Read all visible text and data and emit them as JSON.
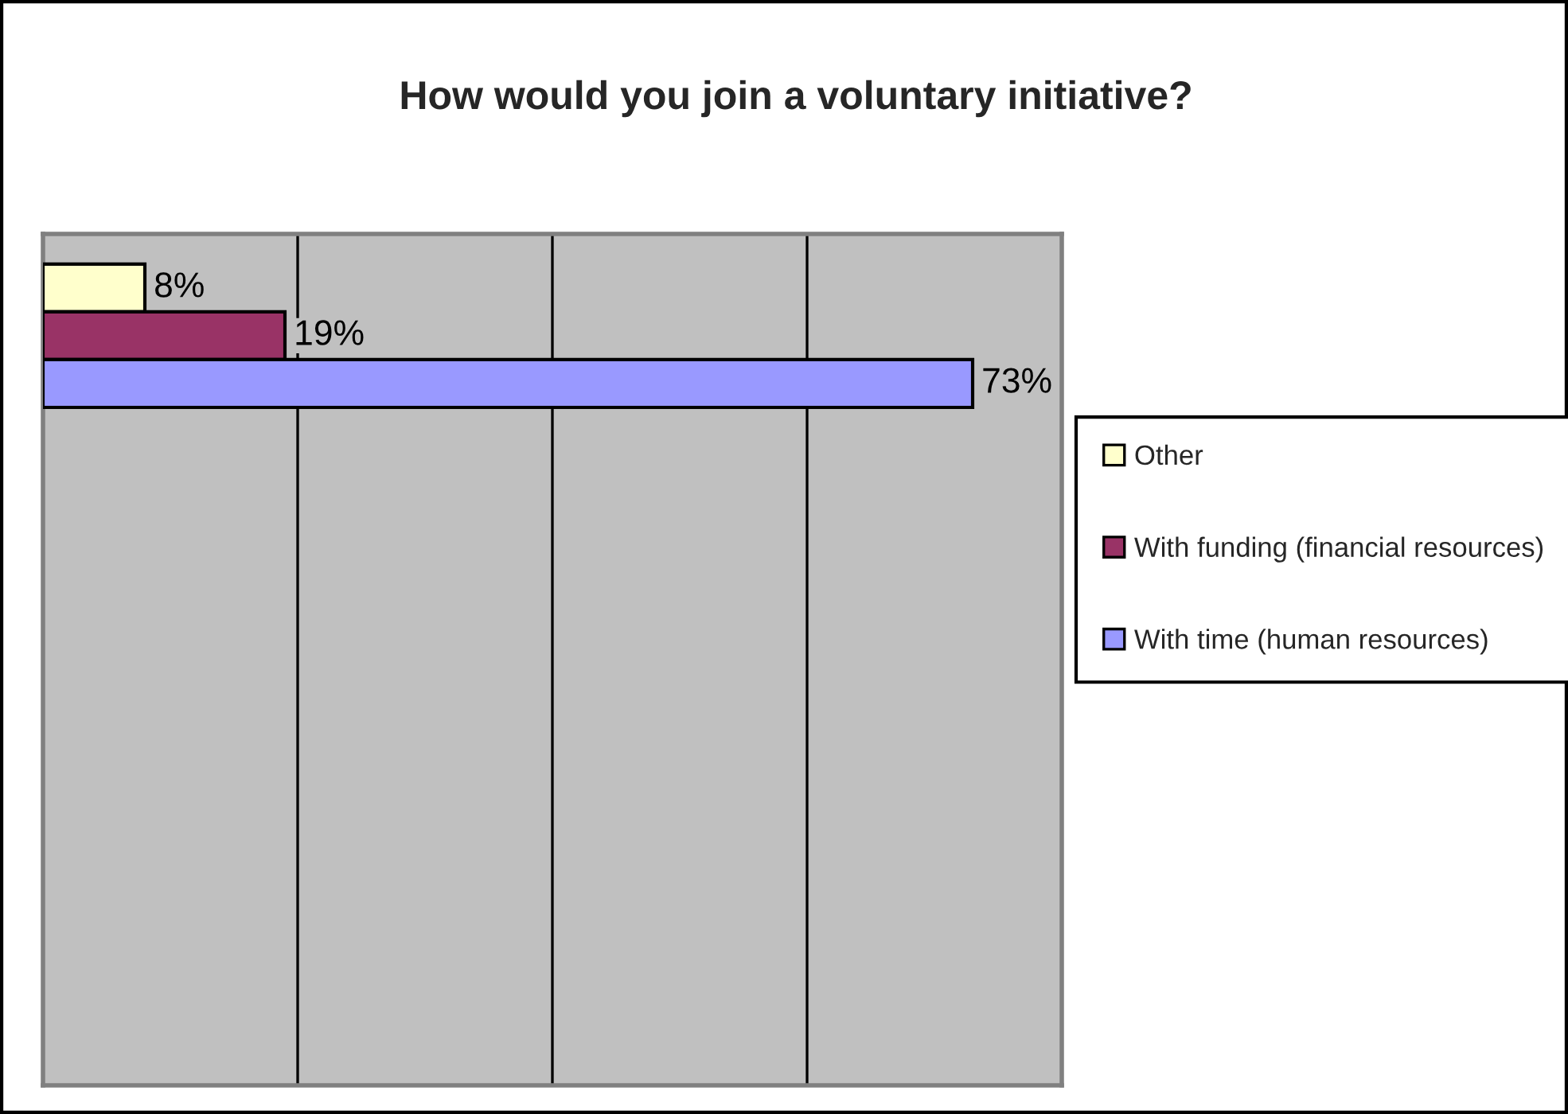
{
  "chart_data": {
    "type": "bar",
    "orientation": "horizontal",
    "title": "How would you join a voluntary initiative?",
    "categories": [
      null
    ],
    "series": [
      {
        "name": "Other",
        "color": "#ffffcc",
        "values": [
          8
        ],
        "value_labels": [
          "8%"
        ]
      },
      {
        "name": "With funding (financial resources)",
        "color": "#993366",
        "values": [
          19
        ],
        "value_labels": [
          "19%"
        ]
      },
      {
        "name": "With time (human resources)",
        "color": "#9999ff",
        "values": [
          73
        ],
        "value_labels": [
          "73%"
        ]
      }
    ],
    "xlim": [
      0,
      80
    ],
    "xticks": [
      0,
      20,
      40,
      60,
      80
    ],
    "tick_labels": false,
    "grid": "x",
    "legend": "right"
  }
}
